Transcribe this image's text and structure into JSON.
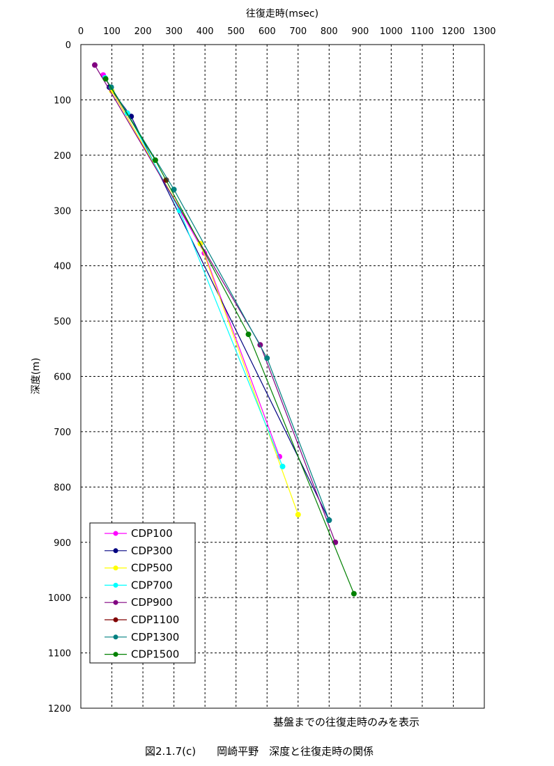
{
  "chart_data": {
    "type": "line",
    "xlabel": "往復走時(msec)",
    "ylabel": "深度(m)",
    "xlim": [
      0,
      1300
    ],
    "ylim": [
      0,
      1200
    ],
    "y_inverted": true,
    "x_axis_position": "top",
    "x_ticks": [
      "0",
      "100",
      "200",
      "300",
      "400",
      "500",
      "600",
      "700",
      "800",
      "900",
      "1000",
      "1100",
      "1200",
      "1300"
    ],
    "y_ticks": [
      "0",
      "100",
      "200",
      "300",
      "400",
      "500",
      "600",
      "700",
      "800",
      "900",
      "1000",
      "1100",
      "1200"
    ],
    "grid": true,
    "legend_position": "bottom-left",
    "series": [
      {
        "name": "CDP100",
        "color": "#ff00ff",
        "points": [
          [
            72,
            55
          ],
          [
            398,
            377
          ],
          [
            640,
            745
          ]
        ]
      },
      {
        "name": "CDP300",
        "color": "#000080",
        "points": [
          [
            92,
            77
          ],
          [
            162,
            130
          ],
          [
            800,
            860
          ]
        ]
      },
      {
        "name": "CDP500",
        "color": "#ffff00",
        "points": [
          [
            100,
            84
          ],
          [
            385,
            360
          ],
          [
            700,
            850
          ]
        ]
      },
      {
        "name": "CDP700",
        "color": "#00ffff",
        "points": [
          [
            78,
            60
          ],
          [
            150,
            124
          ],
          [
            318,
            300
          ],
          [
            650,
            763
          ]
        ]
      },
      {
        "name": "CDP900",
        "color": "#800080",
        "points": [
          [
            45,
            37
          ],
          [
            578,
            543
          ],
          [
            820,
            900
          ]
        ]
      },
      {
        "name": "CDP1100",
        "color": "#800000",
        "points": [
          [
            275,
            245
          ]
        ]
      },
      {
        "name": "CDP1300",
        "color": "#008080",
        "points": [
          [
            98,
            77
          ],
          [
            300,
            262
          ],
          [
            600,
            567
          ],
          [
            800,
            860
          ]
        ]
      },
      {
        "name": "CDP1500",
        "color": "#008000",
        "points": [
          [
            80,
            62
          ],
          [
            240,
            209
          ],
          [
            540,
            524
          ],
          [
            880,
            993
          ]
        ]
      }
    ]
  },
  "note": "基盤までの往復走時のみを表示",
  "caption": "図2.1.7(c)　　岡崎平野　深度と往復走時の関係"
}
